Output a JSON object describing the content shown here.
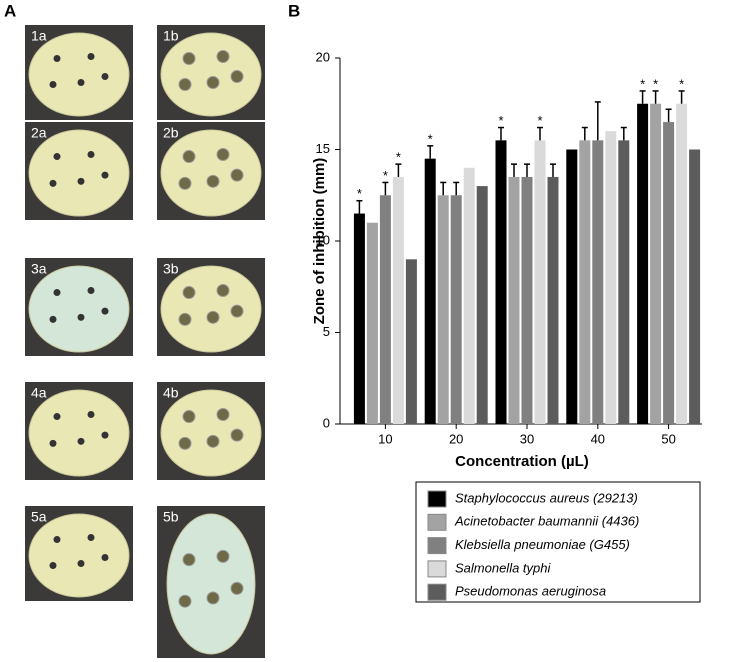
{
  "panel_labels": [
    "A",
    "B"
  ],
  "photo_labels": [
    "1a",
    "1b",
    "2a",
    "2b",
    "3a",
    "3b",
    "4a",
    "4b",
    "5a",
    "5b"
  ],
  "chart_data": {
    "type": "bar",
    "y_label": "Zone of inhibition (mm)",
    "x_label": "Concentration (µL)",
    "categories": [
      "10",
      "20",
      "30",
      "40",
      "50"
    ],
    "ylim": [
      0,
      20
    ],
    "yticks": [
      0,
      5,
      10,
      15,
      20
    ],
    "grid": false,
    "legend": "below",
    "series": [
      {
        "name": "Staphylococcus aureus (29213)",
        "color": "#000000",
        "values": [
          11.5,
          14.5,
          15.5,
          15.0,
          17.5
        ],
        "errors": [
          0.7,
          0.7,
          0.7,
          null,
          0.7
        ],
        "markers": [
          "*",
          "*",
          "*",
          null,
          "*"
        ]
      },
      {
        "name": "Acinetobacter baumannii (4436)",
        "color": "#a3a3a3",
        "values": [
          11.0,
          12.5,
          13.5,
          15.5,
          17.5
        ],
        "errors": [
          null,
          0.7,
          0.7,
          0.7,
          0.7
        ],
        "markers": [
          null,
          null,
          null,
          null,
          "*"
        ]
      },
      {
        "name": "Klebsiella pneumoniae (G455)",
        "color": "#808080",
        "values": [
          12.5,
          12.5,
          13.5,
          15.5,
          16.5
        ],
        "errors": [
          0.7,
          0.7,
          0.7,
          2.1,
          0.7
        ],
        "markers": [
          "*",
          null,
          null,
          null,
          null
        ]
      },
      {
        "name": "Salmonella typhi",
        "color": "#dadada",
        "values": [
          13.5,
          14.0,
          15.5,
          16.0,
          17.5
        ],
        "errors": [
          0.7,
          null,
          0.7,
          null,
          0.7
        ],
        "markers": [
          "*",
          null,
          "*",
          null,
          "*"
        ]
      },
      {
        "name": "Pseudomonas aeruginosa",
        "color": "#5c5c5c",
        "values": [
          9.0,
          13.0,
          13.5,
          15.5,
          15.0
        ],
        "errors": [
          null,
          null,
          0.7,
          0.7,
          null
        ],
        "markers": [
          null,
          null,
          null,
          null,
          null
        ]
      }
    ]
  }
}
